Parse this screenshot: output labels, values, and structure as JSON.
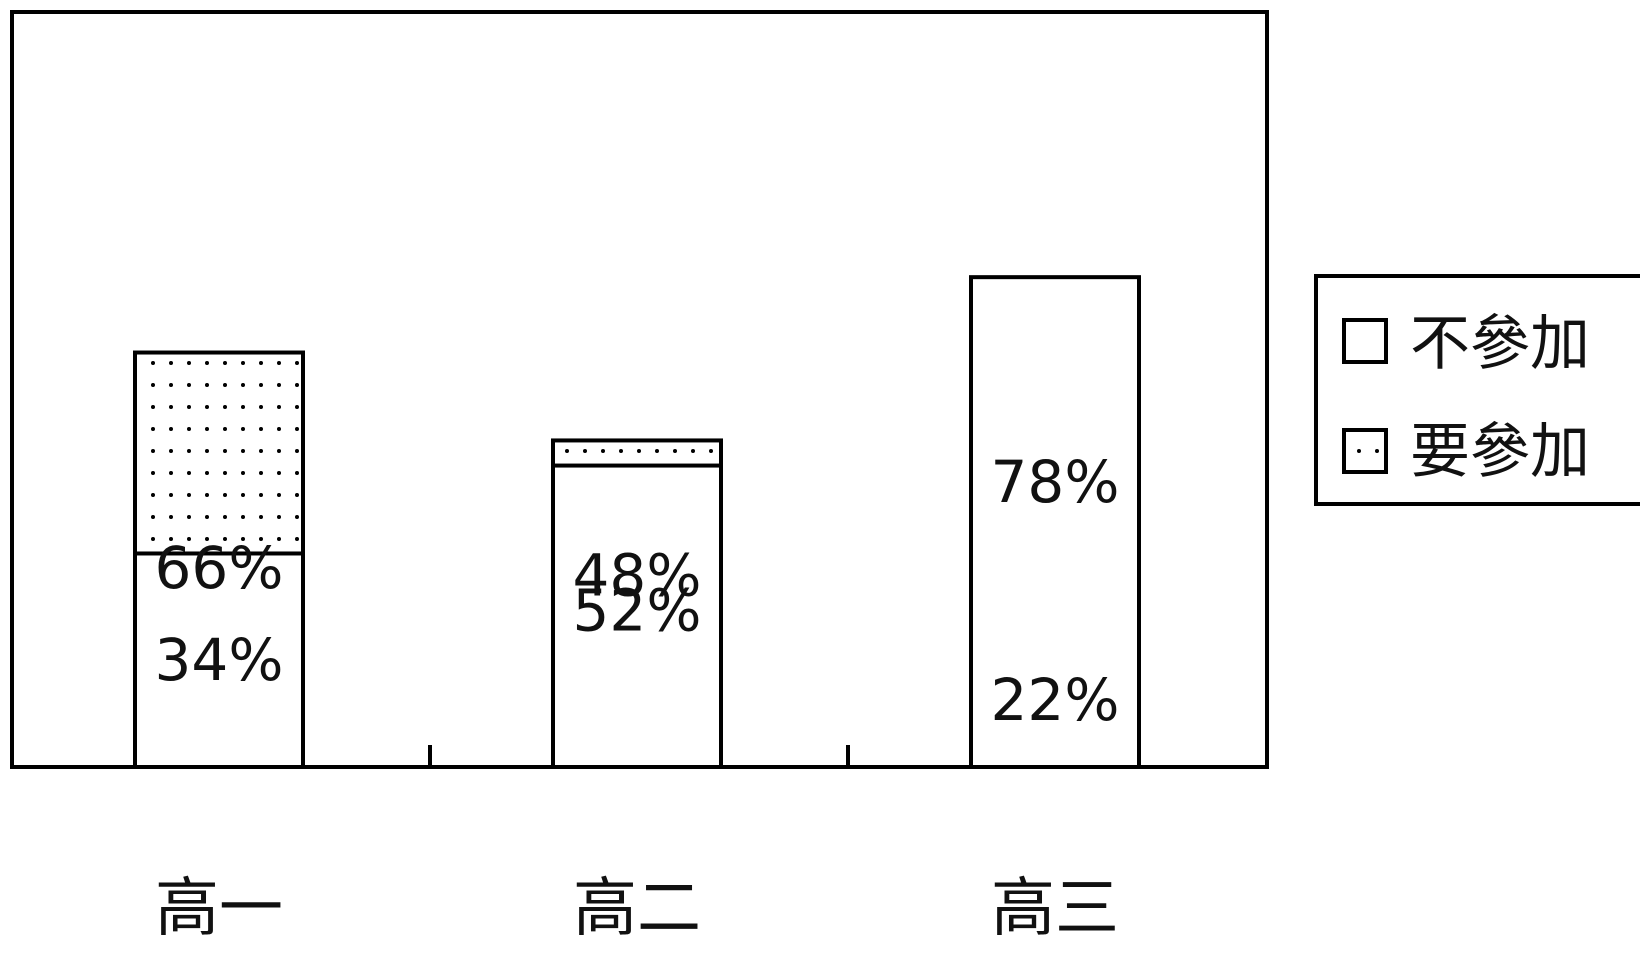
{
  "chart_data": {
    "type": "bar",
    "stacked": true,
    "categories": [
      "高一",
      "高二",
      "高三"
    ],
    "series": [
      {
        "name": "要參加",
        "values": [
          66,
          52,
          22
        ],
        "labels": [
          "66%",
          "52%",
          "22%"
        ],
        "fill": "dotted"
      },
      {
        "name": "不參加",
        "values": [
          34,
          48,
          78
        ],
        "labels": [
          "34%",
          "48%",
          "78%"
        ],
        "fill": "#ffffff"
      }
    ],
    "ylim": [
      0,
      100
    ],
    "grid": false,
    "legend_placement": "right",
    "legend": [
      {
        "name": "不參加",
        "fill": "#ffffff"
      },
      {
        "name": "要參加",
        "fill": "dotted"
      }
    ],
    "colors": {
      "frame": "#000000",
      "bar_outline": "#000000",
      "dot": "#000000",
      "background": "#ffffff"
    }
  }
}
